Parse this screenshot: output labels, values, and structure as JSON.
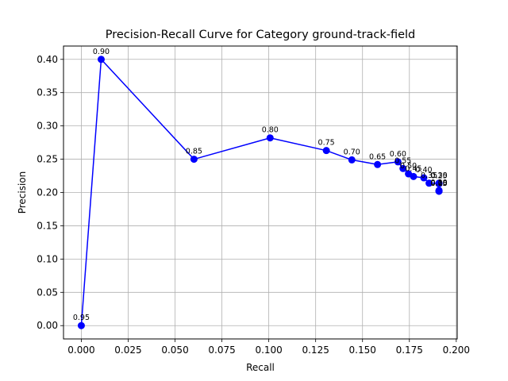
{
  "chart_data": {
    "type": "line",
    "title": "Precision-Recall Curve for Category ground-track-field",
    "xlabel": "Recall",
    "ylabel": "Precision",
    "xlim": [
      -0.0095,
      0.2005
    ],
    "ylim": [
      -0.02,
      0.42
    ],
    "xticks": [
      "0.000",
      "0.025",
      "0.050",
      "0.075",
      "0.100",
      "0.125",
      "0.150",
      "0.175",
      "0.200"
    ],
    "xtick_values": [
      0,
      0.025,
      0.05,
      0.075,
      0.1,
      0.125,
      0.15,
      0.175,
      0.2
    ],
    "yticks": [
      "0.00",
      "0.05",
      "0.10",
      "0.15",
      "0.20",
      "0.25",
      "0.30",
      "0.35",
      "0.40"
    ],
    "ytick_values": [
      0,
      0.05,
      0.1,
      0.15,
      0.2,
      0.25,
      0.3,
      0.35,
      0.4
    ],
    "grid": true,
    "line_color": "#0000ff",
    "series": [
      {
        "x": [
          0.0,
          0.0106,
          0.0601,
          0.1007,
          0.1307,
          0.1443,
          0.158,
          0.1689,
          0.1716,
          0.1745,
          0.1772,
          0.1827,
          0.1855,
          0.1908,
          0.1908,
          0.1908,
          0.1908,
          0.1908,
          0.1908
        ],
        "y": [
          0.0,
          0.4,
          0.25,
          0.282,
          0.263,
          0.249,
          0.242,
          0.246,
          0.236,
          0.228,
          0.224,
          0.222,
          0.214,
          0.214,
          0.213,
          0.203,
          0.202,
          0.202,
          0.202
        ],
        "labels": [
          "0.95",
          "0.90",
          "0.85",
          "0.80",
          "0.75",
          "0.70",
          "0.65",
          "0.60",
          "0.55",
          "0.50",
          "0.45",
          "0.40",
          "0.35",
          "0.30",
          "0.25",
          "0.20",
          "0.15",
          "0.10",
          "0.05"
        ]
      }
    ]
  }
}
